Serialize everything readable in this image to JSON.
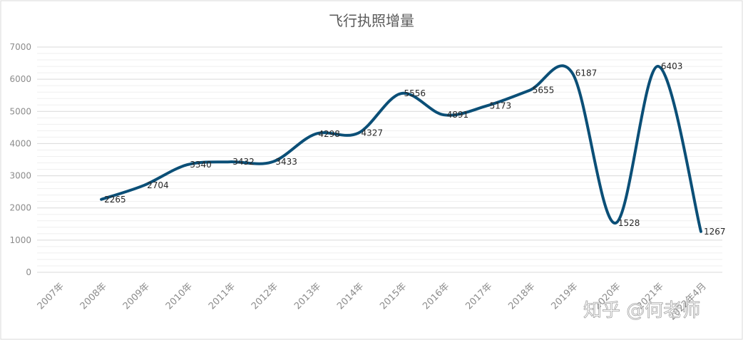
{
  "chart_data": {
    "type": "line",
    "title": "飞行执照增量",
    "categories": [
      "2007年",
      "2008年",
      "2009年",
      "2010年",
      "2011年",
      "2012年",
      "2013年",
      "2014年",
      "2015年",
      "2016年",
      "2017年",
      "2018年",
      "2019年",
      "2020年",
      "2021年",
      "2022年4月"
    ],
    "series": [
      {
        "values": [
          null,
          2265,
          2704,
          3340,
          3432,
          3433,
          4298,
          4327,
          5556,
          4891,
          5173,
          5655,
          6187,
          1528,
          6403,
          1267
        ],
        "color": "#0b4f77"
      }
    ],
    "ylim": [
      0,
      7000
    ],
    "yticks": [
      0,
      1000,
      2000,
      3000,
      4000,
      5000,
      6000,
      7000
    ],
    "grid": true,
    "legend": "none",
    "smooth": true
  },
  "watermark": {
    "text": "知乎 @何老师"
  }
}
